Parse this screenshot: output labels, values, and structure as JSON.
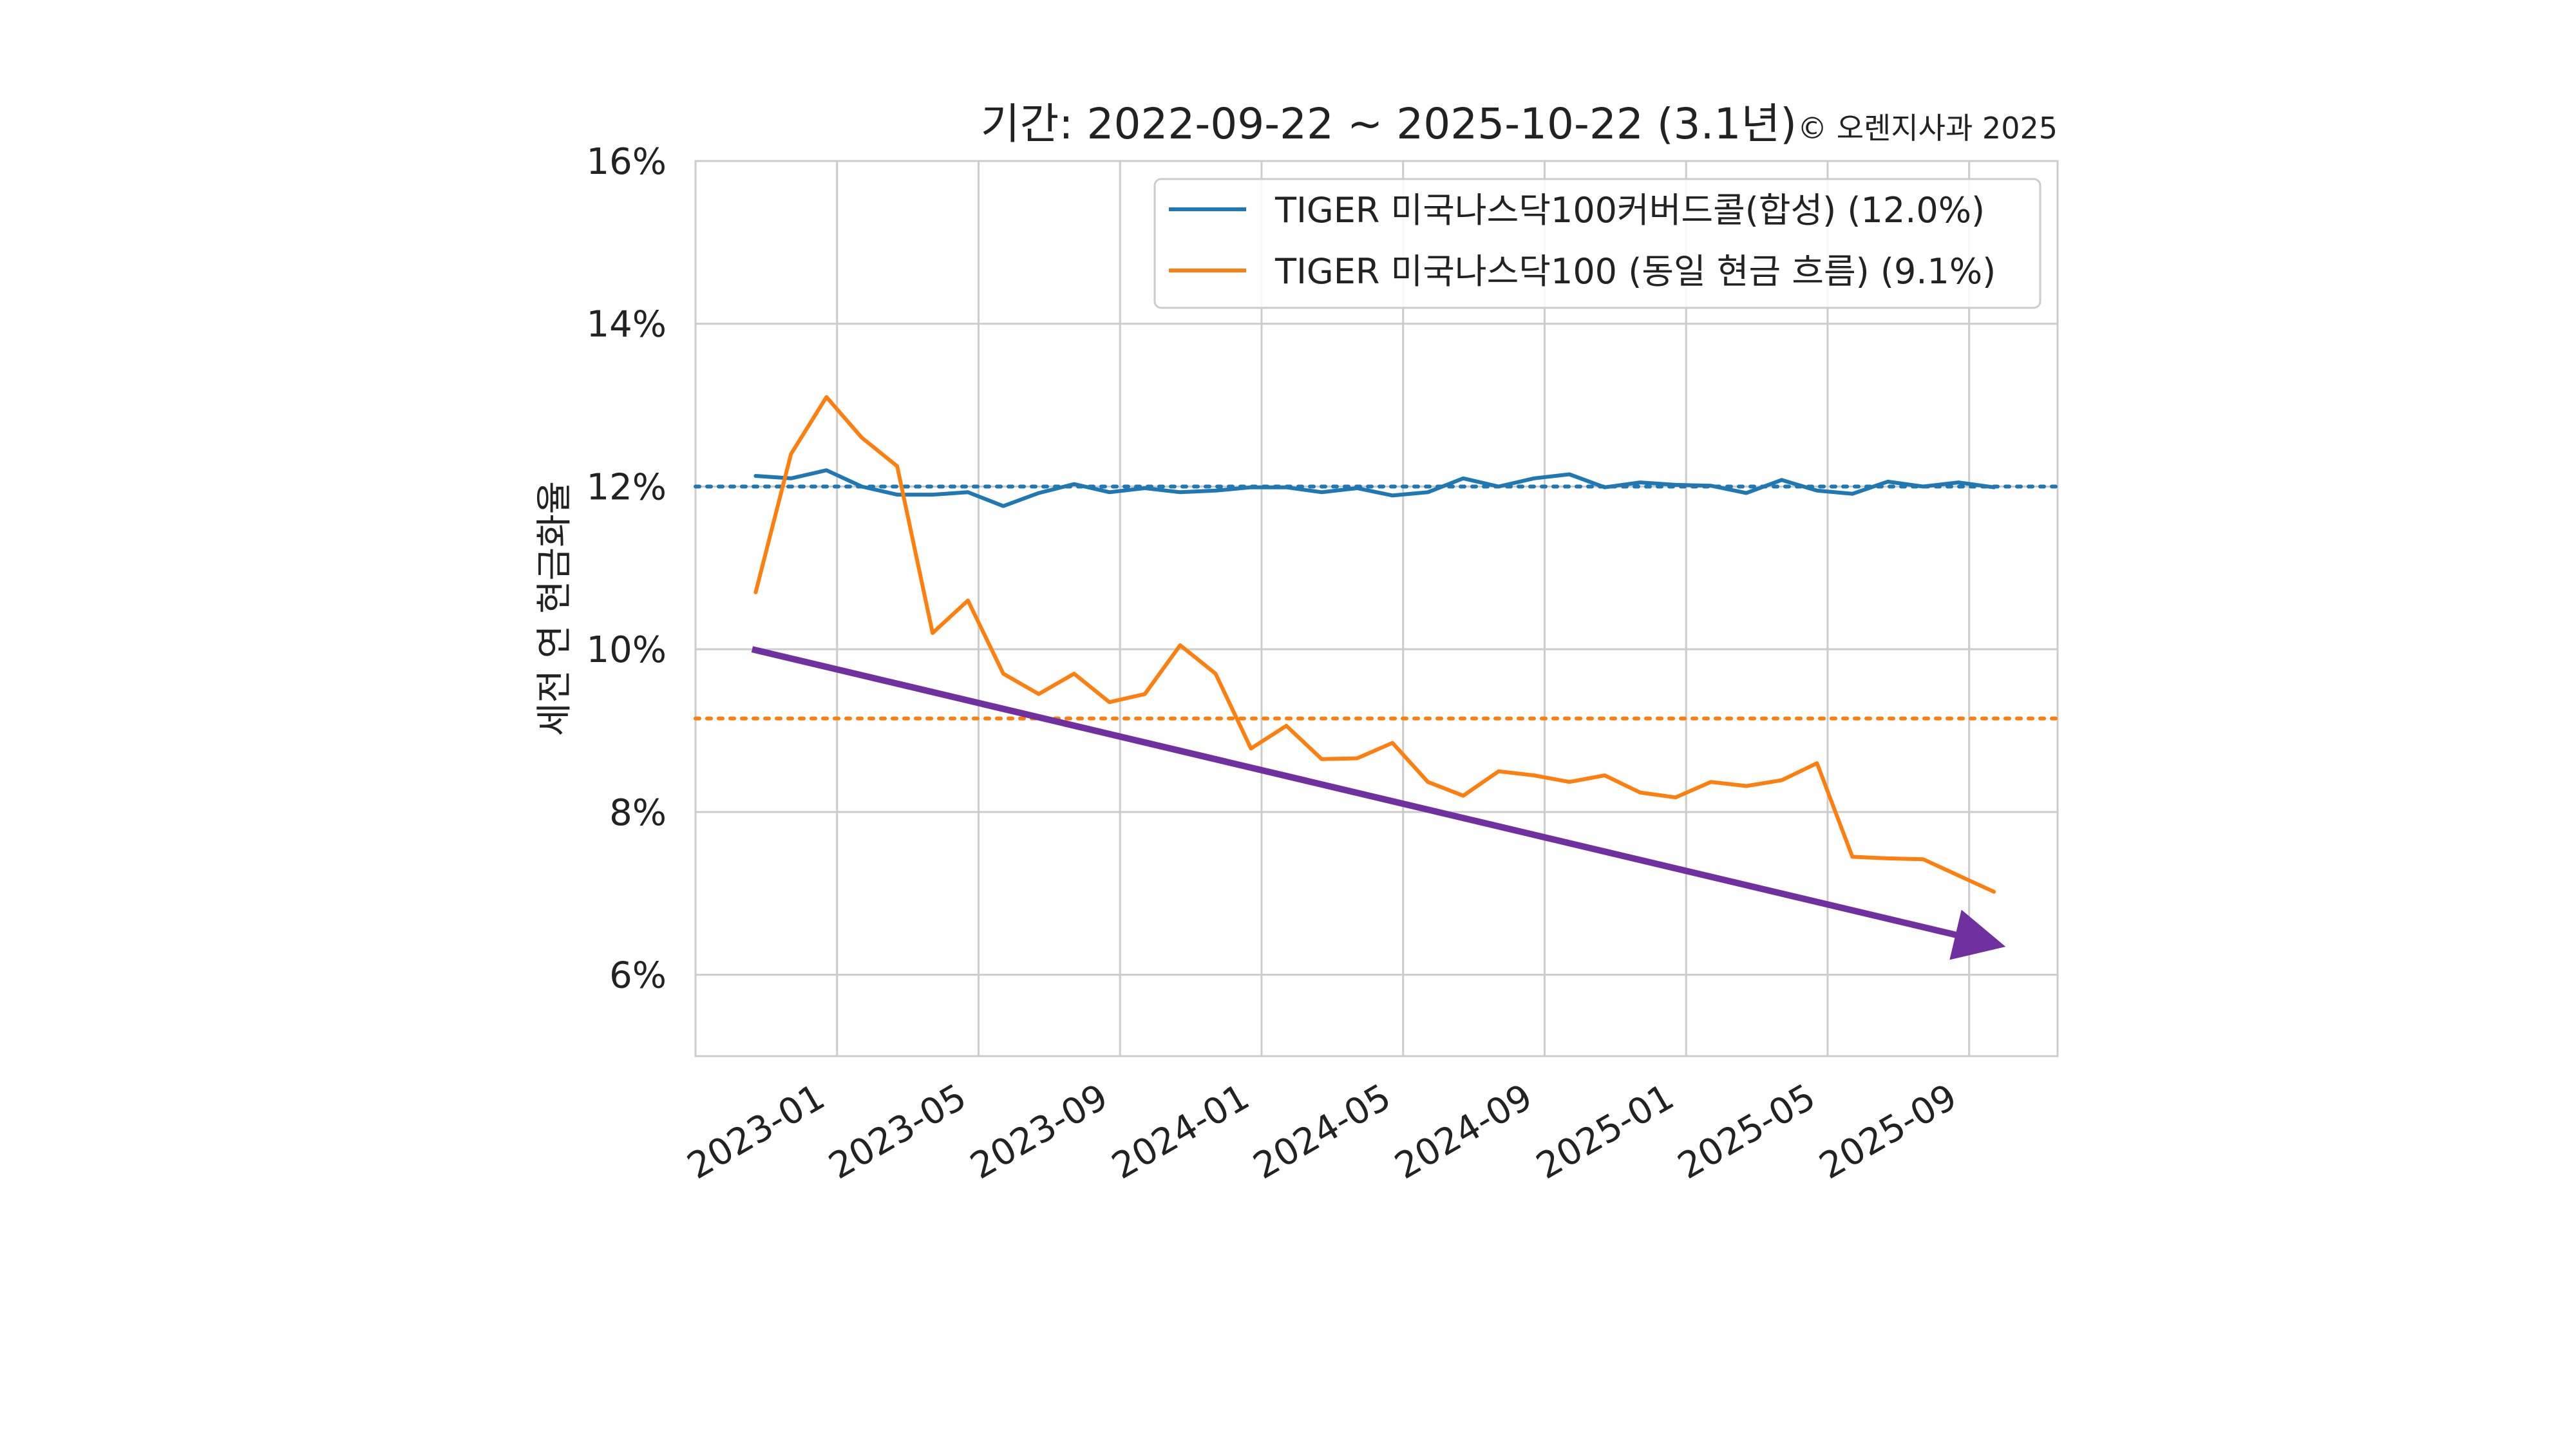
{
  "chart_data": {
    "type": "line",
    "title": "기간: 2022-09-22 ~ 2025-10-22 (3.1년)",
    "copyright": "© 오렌지사과 2025",
    "ylabel": "세전 연 현금화율",
    "xlabel": "",
    "ylim": [
      5,
      16
    ],
    "yticks": [
      6,
      8,
      10,
      12,
      14,
      16
    ],
    "ytick_labels": [
      "6%",
      "8%",
      "10%",
      "12%",
      "14%",
      "16%"
    ],
    "xlim": [
      -1,
      37.5
    ],
    "xticks": [
      3,
      7,
      11,
      15,
      19,
      23,
      27,
      31,
      35
    ],
    "xtick_labels": [
      "2023-01",
      "2023-05",
      "2023-09",
      "2024-01",
      "2024-05",
      "2024-09",
      "2025-01",
      "2025-05",
      "2025-09"
    ],
    "grid": true,
    "legend_position": "top-right",
    "series": [
      {
        "name": "TIGER 미국나스닥100커버드콜(합성) (12.0%)",
        "color": "#1f77b4",
        "x": [
          0.7,
          1.7,
          2.7,
          3.7,
          4.7,
          5.7,
          6.7,
          7.7,
          8.7,
          9.7,
          10.7,
          11.7,
          12.7,
          13.7,
          14.7,
          15.7,
          16.7,
          17.7,
          18.7,
          19.7,
          20.7,
          21.7,
          22.7,
          23.7,
          24.7,
          25.7,
          26.7,
          27.7,
          28.7,
          29.7,
          30.7,
          31.7,
          32.7,
          33.7,
          34.7,
          35.7
        ],
        "values": [
          12.13,
          12.1,
          12.2,
          12.0,
          11.9,
          11.9,
          11.93,
          11.76,
          11.92,
          12.03,
          11.93,
          11.98,
          11.93,
          11.95,
          11.99,
          11.99,
          11.93,
          11.98,
          11.89,
          11.93,
          12.1,
          12.0,
          12.1,
          12.15,
          11.99,
          12.05,
          12.02,
          12.01,
          11.92,
          12.08,
          11.95,
          11.91,
          12.06,
          12.0,
          12.05,
          11.99
        ]
      },
      {
        "name": "TIGER 미국나스닥100 (동일 현금 흐름) (9.1%)",
        "color": "#ff7f0e",
        "x": [
          0.7,
          1.7,
          2.7,
          3.7,
          4.7,
          5.7,
          6.7,
          7.7,
          8.7,
          9.7,
          10.7,
          11.7,
          12.7,
          13.7,
          14.7,
          15.7,
          16.7,
          17.7,
          18.7,
          19.7,
          20.7,
          21.7,
          22.7,
          23.7,
          24.7,
          25.7,
          26.7,
          27.7,
          28.7,
          29.7,
          30.7,
          31.7,
          32.7,
          33.7,
          34.7,
          35.7
        ],
        "values": [
          10.7,
          12.4,
          13.1,
          12.6,
          12.25,
          10.2,
          10.6,
          9.7,
          9.45,
          9.7,
          9.35,
          9.45,
          10.05,
          9.7,
          8.78,
          9.06,
          8.65,
          8.66,
          8.85,
          8.37,
          8.2,
          8.5,
          8.45,
          8.37,
          8.45,
          8.24,
          8.18,
          8.37,
          8.32,
          8.39,
          8.6,
          7.45,
          7.43,
          7.42,
          7.22,
          7.02
        ]
      }
    ],
    "reference_lines": [
      {
        "value": 12.0,
        "color": "#1f77b4",
        "style": "dotted"
      },
      {
        "value": 9.15,
        "color": "#ff7f0e",
        "style": "dotted"
      }
    ],
    "trend_arrow": {
      "color": "#7030a0",
      "from": [
        0.6,
        10.0
      ],
      "to": [
        35.5,
        6.4
      ]
    }
  }
}
